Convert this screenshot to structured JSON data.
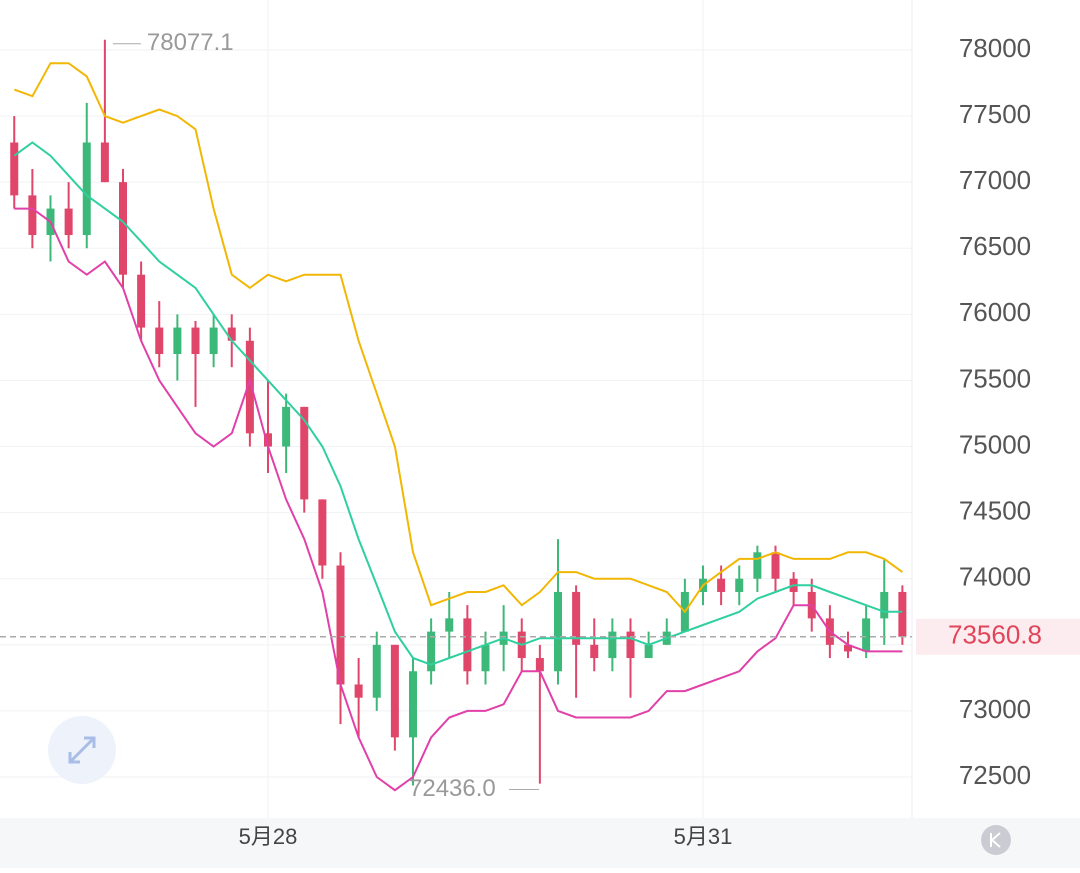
{
  "chart_data": {
    "type": "candlestick",
    "categories": [
      null,
      null,
      null,
      null,
      null,
      null,
      null,
      null,
      null,
      null,
      null,
      null,
      null,
      null,
      "5月28",
      null,
      null,
      null,
      null,
      null,
      null,
      null,
      null,
      null,
      null,
      null,
      null,
      null,
      null,
      null,
      null,
      null,
      null,
      null,
      null,
      null,
      null,
      null,
      "5月31",
      null,
      null,
      null,
      null,
      null,
      null,
      null,
      null,
      null,
      null,
      null
    ],
    "candles": [
      [
        77300,
        77500,
        76800,
        76900
      ],
      [
        76900,
        77100,
        76500,
        76600
      ],
      [
        76600,
        76900,
        76400,
        76800
      ],
      [
        76800,
        77000,
        76500,
        76600
      ],
      [
        76600,
        77600,
        76500,
        77300
      ],
      [
        77300,
        78077.1,
        77000,
        77000
      ],
      [
        77000,
        77100,
        76200,
        76300
      ],
      [
        76300,
        76400,
        75800,
        75900
      ],
      [
        75900,
        76100,
        75600,
        75700
      ],
      [
        75700,
        76000,
        75500,
        75900
      ],
      [
        75900,
        75950,
        75300,
        75700
      ],
      [
        75700,
        76000,
        75600,
        75900
      ],
      [
        75900,
        76000,
        75600,
        75800
      ],
      [
        75800,
        75900,
        75000,
        75100
      ],
      [
        75100,
        75500,
        74800,
        75000
      ],
      [
        75000,
        75400,
        74800,
        75300
      ],
      [
        75300,
        75300,
        74500,
        74600
      ],
      [
        74600,
        74600,
        74000,
        74100
      ],
      [
        74100,
        74200,
        72900,
        73200
      ],
      [
        73200,
        73400,
        72800,
        73100
      ],
      [
        73100,
        73600,
        73000,
        73500
      ],
      [
        73500,
        73500,
        72700,
        72800
      ],
      [
        72800,
        73400,
        72436.0,
        73300
      ],
      [
        73300,
        73700,
        73200,
        73600
      ],
      [
        73600,
        73900,
        73400,
        73700
      ],
      [
        73700,
        73800,
        73200,
        73300
      ],
      [
        73300,
        73600,
        73200,
        73500
      ],
      [
        73500,
        73800,
        73300,
        73600
      ],
      [
        73600,
        73700,
        73300,
        73400
      ],
      [
        73400,
        73500,
        72450,
        73300
      ],
      [
        73300,
        74300,
        73200,
        73900
      ],
      [
        73900,
        73950,
        73100,
        73500
      ],
      [
        73500,
        73700,
        73300,
        73400
      ],
      [
        73400,
        73700,
        73300,
        73600
      ],
      [
        73600,
        73700,
        73100,
        73400
      ],
      [
        73400,
        73600,
        73400,
        73500
      ],
      [
        73500,
        73700,
        73500,
        73600
      ],
      [
        73600,
        74000,
        73600,
        73900
      ],
      [
        73900,
        74100,
        73800,
        74000
      ],
      [
        74000,
        74100,
        73800,
        73900
      ],
      [
        73900,
        74100,
        73800,
        74000
      ],
      [
        74000,
        74250,
        73900,
        74200
      ],
      [
        74200,
        74250,
        73900,
        74000
      ],
      [
        74000,
        74050,
        73800,
        73900
      ],
      [
        73900,
        74000,
        73600,
        73700
      ],
      [
        73700,
        73800,
        73400,
        73500
      ],
      [
        73500,
        73600,
        73400,
        73450
      ],
      [
        73450,
        73800,
        73400,
        73700
      ],
      [
        73700,
        74150,
        73500,
        73900
      ],
      [
        73900,
        73950,
        73500,
        73560.8
      ]
    ],
    "up_color": "#3cb878",
    "down_color": "#e0456a",
    "bands": [
      {
        "color": "#f2b705",
        "values": [
          77700,
          77650,
          77900,
          77900,
          77800,
          77500,
          77450,
          77500,
          77550,
          77500,
          77400,
          76800,
          76300,
          76200,
          76300,
          76250,
          76300,
          76300,
          76300,
          75800,
          75400,
          75000,
          74200,
          73800,
          73850,
          73900,
          73900,
          73950,
          73800,
          73900,
          74050,
          74050,
          74000,
          74000,
          74000,
          73950,
          73900,
          73750,
          73950,
          74050,
          74150,
          74150,
          74200,
          74150,
          74150,
          74150,
          74200,
          74200,
          74150,
          74050
        ]
      },
      {
        "color": "#2fcf9f",
        "values": [
          77200,
          77300,
          77200,
          77050,
          76900,
          76800,
          76700,
          76550,
          76400,
          76300,
          76200,
          76000,
          75800,
          75650,
          75500,
          75350,
          75200,
          75000,
          74700,
          74300,
          73950,
          73600,
          73400,
          73350,
          73400,
          73450,
          73500,
          73550,
          73500,
          73550,
          73550,
          73550,
          73550,
          73550,
          73550,
          73500,
          73550,
          73600,
          73650,
          73700,
          73750,
          73850,
          73900,
          73950,
          73950,
          73900,
          73850,
          73800,
          73750,
          73750
        ]
      },
      {
        "color": "#e040a8",
        "values": [
          76800,
          76800,
          76700,
          76400,
          76300,
          76400,
          76200,
          75800,
          75500,
          75300,
          75100,
          75000,
          75100,
          75500,
          75000,
          74600,
          74300,
          73900,
          73200,
          72800,
          72500,
          72400,
          72500,
          72800,
          72950,
          73000,
          73000,
          73050,
          73300,
          73300,
          73000,
          72950,
          72950,
          72950,
          72950,
          73000,
          73150,
          73150,
          73200,
          73250,
          73300,
          73450,
          73550,
          73800,
          73800,
          73600,
          73500,
          73450,
          73450,
          73450
        ]
      }
    ],
    "extreme_labels": {
      "high": "78077.1",
      "low": "72436.0"
    },
    "ylim": [
      72190,
      78378
    ],
    "yticks": [
      72500,
      73000,
      73500,
      74000,
      74500,
      75000,
      75500,
      76000,
      76500,
      77000,
      77500,
      78000
    ],
    "grid": true
  }
}
